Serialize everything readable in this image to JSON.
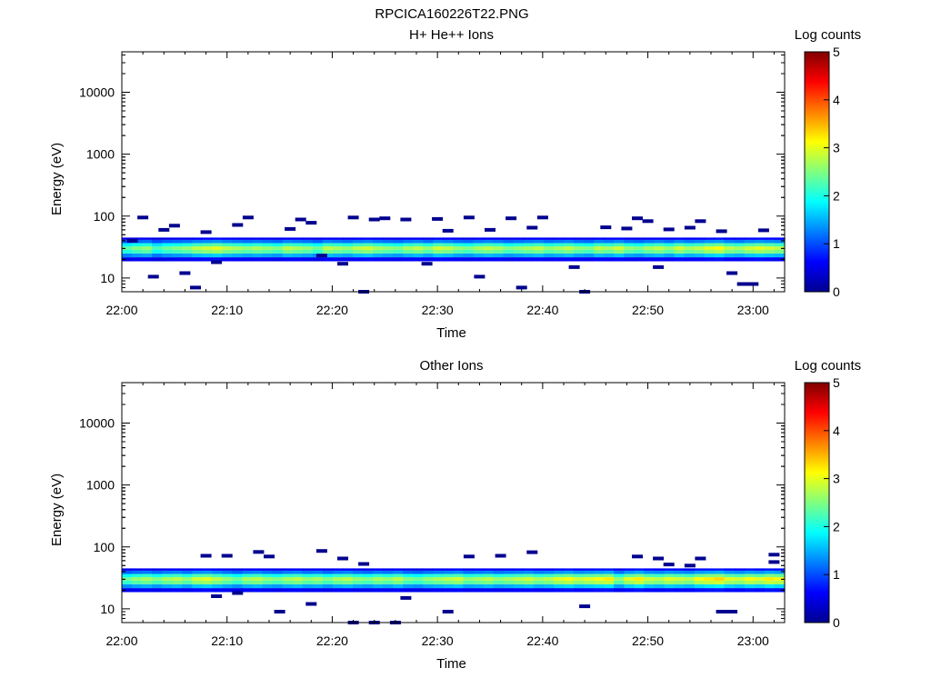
{
  "figure_title": "RPCICA160226T22.PNG",
  "chart_data": [
    {
      "type": "heatmap",
      "title": "H+ He++ Ions",
      "xlabel": "Time",
      "ylabel": "Energy (eV)",
      "x_ticks": [
        "22:00",
        "22:10",
        "22:20",
        "22:30",
        "22:40",
        "22:50",
        "23:00"
      ],
      "x_range": [
        "22:00",
        "23:03"
      ],
      "y_scale": "log",
      "y_ticks": [
        "10",
        "100",
        "1000",
        "10000"
      ],
      "ylim": [
        6,
        45000
      ],
      "colorbar": {
        "label": "Log counts",
        "range": [
          0,
          5
        ],
        "ticks": [
          "0",
          "1",
          "2",
          "3",
          "4",
          "5"
        ]
      },
      "band": {
        "description_values_log_counts": "peak counts of the main ion band per time step",
        "peak_energy_ev": 30,
        "peak_values": [
          2.3,
          2.5,
          2.6,
          2.2,
          2.4,
          2.5,
          2.6,
          2.8,
          2.9,
          3.0,
          2.8,
          2.7,
          2.6,
          2.7,
          2.6,
          2.5,
          2.8,
          2.7,
          2.6,
          2.4,
          2.8,
          2.7,
          2.6,
          2.8,
          2.9,
          2.7,
          2.6,
          2.5,
          2.7,
          2.8,
          2.6,
          2.9,
          2.8,
          2.6,
          2.5,
          2.7,
          2.8,
          2.7,
          2.5,
          2.6,
          2.7,
          2.8,
          2.6,
          2.7,
          2.8,
          2.6,
          2.5,
          2.8,
          2.7,
          2.9,
          2.6,
          2.5,
          2.7,
          2.8,
          2.6,
          2.9,
          2.7,
          2.8,
          3.0,
          3.1,
          2.8,
          2.7,
          2.9,
          3.0,
          2.9,
          2.8
        ]
      },
      "sparse_counts": [
        {
          "t": "22:01",
          "e": 40
        },
        {
          "t": "22:02",
          "e": 95
        },
        {
          "t": "22:03",
          "e": 10.5
        },
        {
          "t": "22:04",
          "e": 60
        },
        {
          "t": "22:05",
          "e": 70
        },
        {
          "t": "22:06",
          "e": 12
        },
        {
          "t": "22:07",
          "e": 7
        },
        {
          "t": "22:08",
          "e": 55
        },
        {
          "t": "22:09",
          "e": 18
        },
        {
          "t": "22:11",
          "e": 72
        },
        {
          "t": "22:12",
          "e": 95
        },
        {
          "t": "22:16",
          "e": 62
        },
        {
          "t": "22:17",
          "e": 88
        },
        {
          "t": "22:18",
          "e": 78
        },
        {
          "t": "22:19",
          "e": 23
        },
        {
          "t": "22:21",
          "e": 17
        },
        {
          "t": "22:22",
          "e": 95
        },
        {
          "t": "22:23",
          "e": 6
        },
        {
          "t": "22:24",
          "e": 88
        },
        {
          "t": "22:25",
          "e": 92
        },
        {
          "t": "22:27",
          "e": 88
        },
        {
          "t": "22:29",
          "e": 17
        },
        {
          "t": "22:30",
          "e": 90
        },
        {
          "t": "22:31",
          "e": 58
        },
        {
          "t": "22:33",
          "e": 95
        },
        {
          "t": "22:34",
          "e": 10.5
        },
        {
          "t": "22:35",
          "e": 60
        },
        {
          "t": "22:37",
          "e": 92
        },
        {
          "t": "22:38",
          "e": 7
        },
        {
          "t": "22:39",
          "e": 65
        },
        {
          "t": "22:40",
          "e": 95
        },
        {
          "t": "22:43",
          "e": 15
        },
        {
          "t": "22:44",
          "e": 6
        },
        {
          "t": "22:46",
          "e": 66
        },
        {
          "t": "22:48",
          "e": 63
        },
        {
          "t": "22:49",
          "e": 92
        },
        {
          "t": "22:50",
          "e": 83
        },
        {
          "t": "22:51",
          "e": 15
        },
        {
          "t": "22:52",
          "e": 61
        },
        {
          "t": "22:54",
          "e": 65
        },
        {
          "t": "22:55",
          "e": 83
        },
        {
          "t": "22:57",
          "e": 57
        },
        {
          "t": "22:58",
          "e": 12
        },
        {
          "t": "22:59",
          "e": 8
        },
        {
          "t": "23:00",
          "e": 8
        },
        {
          "t": "23:01",
          "e": 59
        }
      ]
    },
    {
      "type": "heatmap",
      "title": "Other Ions",
      "xlabel": "Time",
      "ylabel": "Energy (eV)",
      "x_ticks": [
        "22:00",
        "22:10",
        "22:20",
        "22:30",
        "22:40",
        "22:50",
        "23:00"
      ],
      "x_range": [
        "22:00",
        "23:03"
      ],
      "y_scale": "log",
      "y_ticks": [
        "10",
        "100",
        "1000",
        "10000"
      ],
      "ylim": [
        6,
        45000
      ],
      "colorbar": {
        "label": "Log counts",
        "range": [
          0,
          5
        ],
        "ticks": [
          "0",
          "1",
          "2",
          "3",
          "4",
          "5"
        ]
      },
      "band": {
        "description_values_log_counts": "peak counts of the main ion band per time step",
        "peak_energy_ev": 30,
        "peak_values": [
          2.4,
          2.6,
          2.7,
          2.5,
          2.7,
          2.8,
          2.6,
          2.9,
          3.0,
          2.8,
          2.6,
          2.4,
          2.7,
          2.8,
          2.6,
          2.5,
          2.7,
          2.8,
          2.6,
          2.7,
          2.5,
          2.7,
          2.8,
          2.6,
          2.5,
          2.7,
          2.6,
          2.8,
          2.5,
          2.4,
          2.6,
          2.7,
          2.8,
          2.9,
          2.6,
          2.7,
          2.8,
          2.6,
          2.7,
          2.8,
          2.9,
          2.7,
          2.8,
          3.0,
          3.1,
          2.9,
          3.0,
          3.1,
          3.2,
          2.6,
          3.0,
          3.2,
          2.9,
          2.8,
          3.0,
          2.9,
          2.8,
          3.1,
          3.2,
          3.3,
          3.0,
          2.9,
          3.1,
          3.0,
          3.2,
          3.1
        ]
      },
      "sparse_counts": [
        {
          "t": "22:08",
          "e": 72
        },
        {
          "t": "22:09",
          "e": 16
        },
        {
          "t": "22:10",
          "e": 72
        },
        {
          "t": "22:11",
          "e": 18
        },
        {
          "t": "22:13",
          "e": 83
        },
        {
          "t": "22:14",
          "e": 70
        },
        {
          "t": "22:15",
          "e": 9
        },
        {
          "t": "22:18",
          "e": 12
        },
        {
          "t": "22:19",
          "e": 86
        },
        {
          "t": "22:21",
          "e": 65
        },
        {
          "t": "22:22",
          "e": 6
        },
        {
          "t": "22:23",
          "e": 53
        },
        {
          "t": "22:24",
          "e": 6
        },
        {
          "t": "22:26",
          "e": 6
        },
        {
          "t": "22:27",
          "e": 15
        },
        {
          "t": "22:31",
          "e": 9
        },
        {
          "t": "22:33",
          "e": 70
        },
        {
          "t": "22:36",
          "e": 72
        },
        {
          "t": "22:39",
          "e": 82
        },
        {
          "t": "22:44",
          "e": 11
        },
        {
          "t": "22:49",
          "e": 70
        },
        {
          "t": "22:51",
          "e": 65
        },
        {
          "t": "22:52",
          "e": 52
        },
        {
          "t": "22:54",
          "e": 50
        },
        {
          "t": "22:55",
          "e": 65
        },
        {
          "t": "22:57",
          "e": 9
        },
        {
          "t": "22:58",
          "e": 9
        },
        {
          "t": "23:02",
          "e": 75
        },
        {
          "t": "23:02",
          "e": 57
        }
      ]
    }
  ]
}
